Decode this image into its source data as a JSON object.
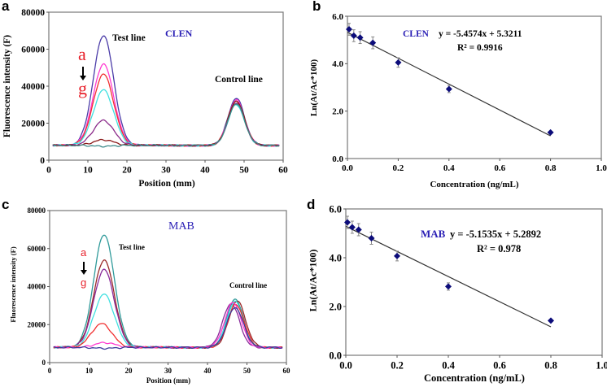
{
  "panels": {
    "a": {
      "letter": "a",
      "sample": "CLEN",
      "test_label": "Test line",
      "control_label": "Control line",
      "from": "a",
      "to": "g",
      "xlabel": "Position (mm)",
      "ylabel": "Fluorescence intensity (F)"
    },
    "b": {
      "letter": "b",
      "sample": "CLEN",
      "equation": "y = -5.4574x + 5.3211",
      "r2": "R² = 0.9916",
      "xlabel": "Concentration (ng/mL)",
      "ylabel": "Ln(At/Ac*100)"
    },
    "c": {
      "letter": "c",
      "sample": "MAB",
      "test_label": "Test line",
      "control_label": "Control line",
      "from": "a",
      "to": "g",
      "xlabel": "Position (mm)",
      "ylabel": "Fluorescence intensity (F)"
    },
    "d": {
      "letter": "d",
      "sample": "MAB",
      "equation": "y = -5.1535x + 5.2892",
      "r2": "R² = 0.978",
      "xlabel": "Concentration (ng/mL)",
      "ylabel": "Ln(At/Ac*100)"
    }
  },
  "colors": {
    "sample_label": "#2a1fb5",
    "range_label": "#e8202a",
    "marker": "#0c0c7a"
  },
  "chart_data": [
    {
      "panel": "a",
      "type": "line",
      "xlim": [
        0,
        60
      ],
      "ylim": [
        0,
        80000
      ],
      "xticks": [
        "0",
        "10",
        "20",
        "30",
        "40",
        "50",
        "60"
      ],
      "yticks": [
        "0",
        "20000",
        "40000",
        "60000",
        "80000"
      ],
      "grid": false,
      "baseline": 8000,
      "series": [
        {
          "color": "#4b3ca8",
          "test_peak": {
            "x": 14,
            "y": 67500
          },
          "control_peak": {
            "x": 48,
            "y": 33500
          }
        },
        {
          "color": "#ff3ad0",
          "test_peak": {
            "x": 14,
            "y": 52000
          },
          "control_peak": {
            "x": 48,
            "y": 32500
          }
        },
        {
          "color": "#f03030",
          "test_peak": {
            "x": 14,
            "y": 46500
          },
          "control_peak": {
            "x": 48,
            "y": 31500
          }
        },
        {
          "color": "#40e0e0",
          "test_peak": {
            "x": 14,
            "y": 38000
          },
          "control_peak": {
            "x": 48,
            "y": 30000
          }
        },
        {
          "color": "#8a2b8a",
          "test_peak": {
            "x": 14,
            "y": 21500
          },
          "control_peak": {
            "x": 48,
            "y": 31000
          }
        },
        {
          "color": "#8b1a1a",
          "test_peak": {
            "x": 14,
            "y": 11000
          },
          "control_peak": {
            "x": 48,
            "y": 32000
          }
        },
        {
          "color": "#3d8a8a",
          "test_peak": {
            "x": 14,
            "y": 7500
          },
          "control_peak": {
            "x": 48,
            "y": 30500
          }
        }
      ]
    },
    {
      "panel": "b",
      "type": "scatter",
      "xlim": [
        0,
        1
      ],
      "ylim": [
        0,
        6
      ],
      "xticks": [
        "0.0",
        "0.2",
        "0.4",
        "0.6",
        "0.8",
        "1.0"
      ],
      "yticks": [
        "0.0",
        "2.0",
        "4.0",
        "6.0"
      ],
      "grid": false,
      "x": [
        0,
        0.025,
        0.05,
        0.1,
        0.2,
        0.4,
        0.8
      ],
      "y": [
        5.45,
        5.18,
        5.1,
        4.88,
        4.05,
        2.93,
        1.1
      ],
      "error": [
        0.25,
        0.25,
        0.25,
        0.25,
        0.2,
        0.15,
        0.05
      ],
      "trendline": {
        "slope": -5.4574,
        "intercept": 5.3211,
        "x_range": [
          0,
          0.8
        ]
      }
    },
    {
      "panel": "c",
      "type": "line",
      "xlim": [
        0,
        60
      ],
      "ylim": [
        0,
        80000
      ],
      "xticks": [
        "0",
        "10",
        "20",
        "30",
        "40",
        "50",
        "60"
      ],
      "yticks": [
        "0",
        "20000",
        "40000",
        "60000",
        "80000"
      ],
      "grid": false,
      "baseline": 8000,
      "series": [
        {
          "color": "#2f9a9a",
          "test_peak": {
            "x": 13.8,
            "y": 67500
          },
          "control_peak": {
            "x": 47,
            "y": 33500
          }
        },
        {
          "color": "#9b2a2a",
          "test_peak": {
            "x": 13.8,
            "y": 54000
          },
          "control_peak": {
            "x": 47.5,
            "y": 32500
          }
        },
        {
          "color": "#8a2b9a",
          "test_peak": {
            "x": 13.8,
            "y": 49000
          },
          "control_peak": {
            "x": 46,
            "y": 31000
          }
        },
        {
          "color": "#40e0e0",
          "test_peak": {
            "x": 13.8,
            "y": 36000
          },
          "control_peak": {
            "x": 47,
            "y": 32000
          }
        },
        {
          "color": "#f03030",
          "test_peak": {
            "x": 13.2,
            "y": 20500
          },
          "control_peak": {
            "x": 47.2,
            "y": 30500
          }
        },
        {
          "color": "#ff3ad0",
          "test_peak": {
            "x": 14,
            "y": 10500
          },
          "control_peak": {
            "x": 46.5,
            "y": 31500
          }
        },
        {
          "color": "#3a3a9a",
          "test_peak": {
            "x": 14,
            "y": 7500
          },
          "control_peak": {
            "x": 47,
            "y": 29000
          }
        }
      ]
    },
    {
      "panel": "d",
      "type": "scatter",
      "xlim": [
        0,
        1
      ],
      "ylim": [
        0,
        6
      ],
      "xticks": [
        "0.0",
        "0.2",
        "0.4",
        "0.6",
        "0.8",
        "1.0"
      ],
      "yticks": [
        "0.0",
        "2.0",
        "4.0",
        "6.0"
      ],
      "grid": false,
      "x": [
        0,
        0.025,
        0.05,
        0.1,
        0.2,
        0.4,
        0.8
      ],
      "y": [
        5.45,
        5.25,
        5.15,
        4.8,
        4.07,
        2.82,
        1.42
      ],
      "error": [
        0.25,
        0.25,
        0.25,
        0.25,
        0.2,
        0.15,
        0.05
      ],
      "trendline": {
        "slope": -5.1535,
        "intercept": 5.2892,
        "x_range": [
          0,
          0.8
        ]
      }
    }
  ]
}
